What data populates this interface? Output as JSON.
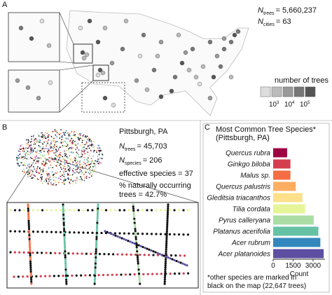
{
  "panels": {
    "a": "A",
    "b": "B",
    "c": "C"
  },
  "panel_a": {
    "n_trees": {
      "symbol": "N",
      "subscript": "trees",
      "value": "= 5,660,237"
    },
    "n_cities": {
      "symbol": "N",
      "subscript": "cities",
      "value": "= 63"
    },
    "legend_title": "number of trees",
    "legend_ticks": [
      {
        "base": "10",
        "exp": "3"
      },
      {
        "base": "10",
        "exp": "4"
      },
      {
        "base": "10",
        "exp": "5"
      }
    ]
  },
  "panel_b": {
    "city": "Pittsburgh, PA",
    "n_trees": {
      "symbol": "N",
      "subscript": "trees",
      "value": "= 45,703"
    },
    "n_species": {
      "symbol": "N",
      "subscript": "species",
      "value": "= 206"
    },
    "effective": "effective species = 37",
    "native_line1": "% naturally occurring",
    "native_line2": "trees = 42.7%"
  },
  "chart_data": {
    "type": "bar",
    "orientation": "horizontal",
    "title": "Most Common Tree Species*",
    "subtitle": "(Pittsburgh, PA)",
    "categories": [
      "Quercus rubra",
      "Ginkgo biloba",
      "Malus sp.",
      "Quercus palustris",
      "Gleditsia triacanthos",
      "Tilia cordata",
      "Pyrus calleryana",
      "Platanus acerifolia",
      "Acer rubrum",
      "Acer platanoides"
    ],
    "values": [
      1050,
      1300,
      1300,
      1700,
      2200,
      2400,
      3050,
      3400,
      3550,
      3800
    ],
    "colors": [
      "#9e0142",
      "#d53e4f",
      "#f46d43",
      "#fdae61",
      "#fee08b",
      "#e6f598",
      "#abdda4",
      "#66c2a5",
      "#3288bd",
      "#5e4fa2"
    ],
    "xlim": [
      0,
      3900
    ],
    "xticks": [
      0,
      1500,
      3000
    ],
    "xlabel": "Count",
    "footnote_line1": "*other species are marked in",
    "footnote_line2": "black on the map (22,647 trees)"
  }
}
